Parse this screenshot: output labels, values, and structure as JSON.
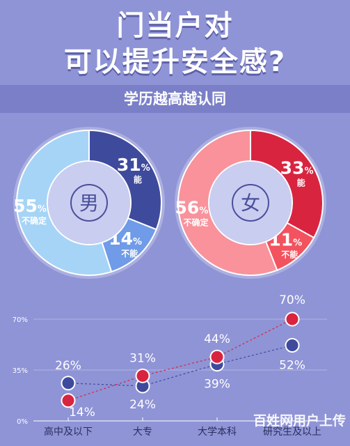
{
  "header": {
    "title_line1": "门当户对",
    "title_line2": "可以提升安全感?",
    "subtitle": "学历越高越认同"
  },
  "chart_data": [
    {
      "type": "pie",
      "center_label": "男",
      "slices": [
        {
          "label": "能",
          "value": 31,
          "value_text": "31",
          "unit": "%",
          "color": "#3e4a9c"
        },
        {
          "label": "不能",
          "value": 14,
          "value_text": "14",
          "unit": "%",
          "color": "#6f9be8"
        },
        {
          "label": "不确定",
          "value": 55,
          "value_text": "55",
          "unit": "%",
          "color": "#a6d4f6"
        }
      ]
    },
    {
      "type": "pie",
      "center_label": "女",
      "slices": [
        {
          "label": "能",
          "value": 33,
          "value_text": "33",
          "unit": "%",
          "color": "#d92440"
        },
        {
          "label": "不能",
          "value": 11,
          "value_text": "11",
          "unit": "%",
          "color": "#f3525f"
        },
        {
          "label": "不确定",
          "value": 56,
          "value_text": "56",
          "unit": "%",
          "color": "#f9929b"
        }
      ]
    },
    {
      "type": "line",
      "categories": [
        "高中及以下",
        "大专",
        "大学本科",
        "研究生及以上"
      ],
      "y_ticks": [
        "0%",
        "35%",
        "70%"
      ],
      "ylim": [
        0,
        70
      ],
      "series": [
        {
          "values": [
            26,
            24,
            39,
            52
          ],
          "labels": [
            "26%",
            "24%",
            "39%",
            "52%"
          ],
          "color": "#3e4a9c"
        },
        {
          "values": [
            14,
            31,
            44,
            70
          ],
          "labels": [
            "14%",
            "31%",
            "44%",
            "70%"
          ],
          "color": "#d92440"
        }
      ]
    }
  ],
  "watermark": "百姓网用户上传"
}
